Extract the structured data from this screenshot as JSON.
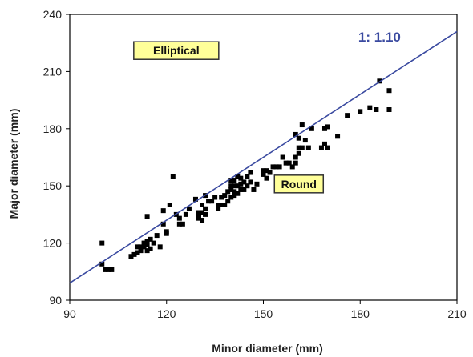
{
  "chart_data": {
    "type": "scatter",
    "title": "",
    "xlabel": "Minor diameter (mm)",
    "ylabel": "Major diameter (mm)",
    "xlim": [
      90,
      210
    ],
    "ylim": [
      90,
      240
    ],
    "xticks": [
      "90",
      "120",
      "150",
      "180",
      "210"
    ],
    "yticks": [
      "90",
      "120",
      "150",
      "180",
      "210",
      "240"
    ],
    "grid": false,
    "colors": {
      "points": "#000000",
      "line": "#3a4aa0",
      "box_fill": "#ffff99",
      "box_border": "#333333"
    },
    "reference_line": {
      "label": "1: 1.10",
      "slope": 1.1,
      "intercept": 0,
      "x_range": [
        90,
        210
      ]
    },
    "annotations": [
      {
        "text": "Elliptical",
        "x": 123,
        "y": 221
      },
      {
        "text": "Round",
        "x": 161,
        "y": 151
      }
    ],
    "points": [
      [
        100,
        109
      ],
      [
        100,
        120
      ],
      [
        101,
        106
      ],
      [
        102,
        106
      ],
      [
        103,
        106
      ],
      [
        109,
        113
      ],
      [
        110,
        114
      ],
      [
        111,
        115
      ],
      [
        111,
        118
      ],
      [
        112,
        116
      ],
      [
        112,
        118
      ],
      [
        113,
        118
      ],
      [
        113,
        120
      ],
      [
        114,
        116
      ],
      [
        114,
        119
      ],
      [
        114,
        121
      ],
      [
        114,
        134
      ],
      [
        115,
        117
      ],
      [
        115,
        122
      ],
      [
        116,
        120
      ],
      [
        117,
        124
      ],
      [
        118,
        118
      ],
      [
        119,
        130
      ],
      [
        119,
        137
      ],
      [
        120,
        125
      ],
      [
        120,
        126
      ],
      [
        121,
        140
      ],
      [
        122,
        155
      ],
      [
        123,
        135
      ],
      [
        124,
        130
      ],
      [
        124,
        133
      ],
      [
        125,
        130
      ],
      [
        126,
        135
      ],
      [
        127,
        138
      ],
      [
        129,
        143
      ],
      [
        130,
        133
      ],
      [
        130,
        134
      ],
      [
        130,
        136
      ],
      [
        131,
        132
      ],
      [
        131,
        136
      ],
      [
        131,
        140
      ],
      [
        132,
        135
      ],
      [
        132,
        138
      ],
      [
        132,
        145
      ],
      [
        133,
        142
      ],
      [
        134,
        142
      ],
      [
        135,
        144
      ],
      [
        136,
        138
      ],
      [
        136,
        140
      ],
      [
        137,
        140
      ],
      [
        137,
        144
      ],
      [
        138,
        140
      ],
      [
        138,
        145
      ],
      [
        139,
        142
      ],
      [
        139,
        147
      ],
      [
        140,
        144
      ],
      [
        140,
        148
      ],
      [
        140,
        150
      ],
      [
        140,
        153
      ],
      [
        141,
        145
      ],
      [
        141,
        147
      ],
      [
        141,
        150
      ],
      [
        141,
        153
      ],
      [
        142,
        146
      ],
      [
        142,
        150
      ],
      [
        142,
        155
      ],
      [
        143,
        148
      ],
      [
        143,
        151
      ],
      [
        143,
        154
      ],
      [
        144,
        148
      ],
      [
        144,
        152
      ],
      [
        145,
        150
      ],
      [
        145,
        155
      ],
      [
        146,
        152
      ],
      [
        146,
        157
      ],
      [
        147,
        148
      ],
      [
        148,
        151
      ],
      [
        150,
        156
      ],
      [
        150,
        158
      ],
      [
        151,
        154
      ],
      [
        151,
        158
      ],
      [
        152,
        157
      ],
      [
        153,
        160
      ],
      [
        154,
        160
      ],
      [
        155,
        160
      ],
      [
        156,
        165
      ],
      [
        157,
        162
      ],
      [
        158,
        162
      ],
      [
        159,
        160
      ],
      [
        160,
        162
      ],
      [
        160,
        165
      ],
      [
        160,
        177
      ],
      [
        161,
        167
      ],
      [
        161,
        170
      ],
      [
        161,
        175
      ],
      [
        162,
        170
      ],
      [
        162,
        182
      ],
      [
        163,
        174
      ],
      [
        164,
        170
      ],
      [
        165,
        180
      ],
      [
        168,
        170
      ],
      [
        169,
        172
      ],
      [
        169,
        180
      ],
      [
        170,
        170
      ],
      [
        170,
        181
      ],
      [
        173,
        176
      ],
      [
        176,
        187
      ],
      [
        180,
        189
      ],
      [
        183,
        191
      ],
      [
        185,
        190
      ],
      [
        186,
        205
      ],
      [
        189,
        190
      ],
      [
        189,
        200
      ]
    ]
  }
}
